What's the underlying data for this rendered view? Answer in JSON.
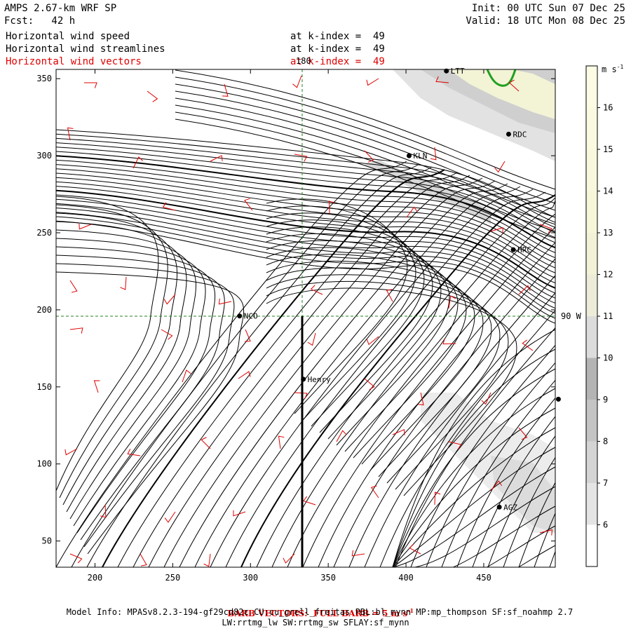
{
  "header": {
    "model": "AMPS 2.67-km WRF SP",
    "forecast": "Fcst:   42 h",
    "init": "Init: 00 UTC Sun 07 Dec 25",
    "valid": "Valid: 18 UTC Mon 08 Dec 25",
    "fields": [
      {
        "label": "Horizontal wind speed",
        "level": "at k-index =  49",
        "color": "#000000"
      },
      {
        "label": "Horizontal wind streamlines",
        "level": "at k-index =  49",
        "color": "#000000"
      },
      {
        "label": "Horizontal wind vectors",
        "level": "at k-index =  49",
        "color": "#e00000"
      }
    ]
  },
  "map": {
    "x_ticks": [
      "200",
      "250",
      "300",
      "350",
      "400",
      "450"
    ],
    "y_ticks": [
      "50",
      "100",
      "150",
      "200",
      "250",
      "300",
      "350"
    ],
    "meridian_label": "180",
    "parallel_label": "90 W",
    "stations": [
      {
        "name": "NCO",
        "x": 293,
        "y": 196
      },
      {
        "name": "Henry",
        "x": 334,
        "y": 155
      },
      {
        "name": "KLN",
        "x": 402,
        "y": 300
      },
      {
        "name": "RDC",
        "x": 466,
        "y": 314
      },
      {
        "name": "LTT",
        "x": 426,
        "y": 355
      },
      {
        "name": "HRC",
        "x": 469,
        "y": 239
      },
      {
        "name": "AGZ",
        "x": 460,
        "y": 72
      },
      {
        "name": "",
        "x": 498,
        "y": 142
      }
    ],
    "colorbar": {
      "unit": "m s-1",
      "levels": [
        "6",
        "7",
        "8",
        "9",
        "10",
        "11",
        "12",
        "13",
        "14",
        "15",
        "16"
      ],
      "colors": [
        "#ffffff",
        "#e4e4e4",
        "#d4d4d4",
        "#c4c4c4",
        "#b4b4b4",
        "#dcdcdc",
        "#ececd8",
        "#f2f2d6",
        "#f6f6d8",
        "#f8f8dc",
        "#fafae0",
        "#fcfce4"
      ]
    }
  },
  "footer": {
    "barb_note": "BARB VECTORS:  FULL BARB = 5 m s",
    "barb_sup": "-1",
    "model_info": "Model Info: MPASv8.2.3-194-gf29cd82c CU:cu_grell_freitas PBL:bl_mynn MP:mp_thompson SF:sf_noahmp 2.7",
    "model_info2": "LW:rrtmg_lw SW:rrtmg_sw SFLAY:sf_mynn"
  }
}
